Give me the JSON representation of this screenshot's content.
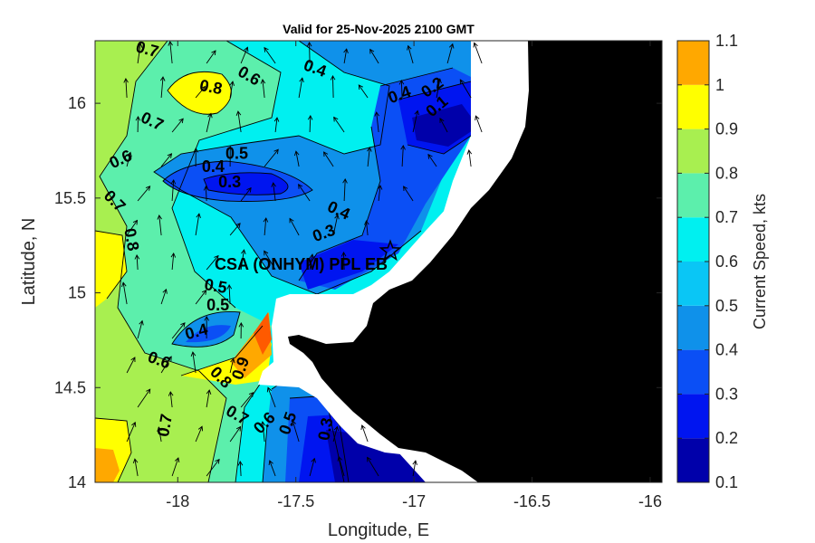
{
  "chart_data": {
    "type": "contourf",
    "title": "Valid for 25-Nov-2025 2100 GMT",
    "xlabel": "Longitude, E",
    "ylabel": "Latitude, N",
    "xlim": [
      -18.35,
      -15.95
    ],
    "ylim": [
      14.0,
      16.33
    ],
    "xticks": [
      -18,
      -17.5,
      -17,
      -16.5,
      -16
    ],
    "xtick_labels": [
      "-18",
      "-17.5",
      "-17",
      "-16.5",
      "-16"
    ],
    "yticks": [
      14,
      14.5,
      15,
      15.5,
      16
    ],
    "ytick_labels": [
      "14",
      "14.5",
      "15",
      "15.5",
      "16"
    ],
    "colorbar": {
      "label": "Current Speed, kts",
      "ticks": [
        0.1,
        0.2,
        0.3,
        0.4,
        0.5,
        0.6,
        0.7,
        0.8,
        0.9,
        1.0,
        1.1
      ],
      "tick_labels": [
        "0.1",
        "0.2",
        "0.3",
        "0.4",
        "0.5",
        "0.6",
        "0.7",
        "0.8",
        "0.9",
        "1",
        "1.1"
      ],
      "colors": [
        "#0000aa",
        "#0015f0",
        "#0b4ff5",
        "#0f91ea",
        "#0ac6f5",
        "#00f0f0",
        "#5cefac",
        "#a8ef50",
        "#ffff00",
        "#ffa800",
        "#ff5a00"
      ]
    },
    "site": {
      "label": "CSA (ONHYM) PPL EB",
      "lon": -17.1,
      "lat": 15.22
    },
    "contour_labels": [
      {
        "text": "0.7",
        "lon": -18.13,
        "lat": 16.28,
        "rot": 15
      },
      {
        "text": "0.6",
        "lon": -17.7,
        "lat": 16.14,
        "rot": 30
      },
      {
        "text": "0.4",
        "lon": -17.42,
        "lat": 16.18,
        "rot": 20
      },
      {
        "text": "0.8",
        "lon": -17.86,
        "lat": 16.08,
        "rot": 10
      },
      {
        "text": "0.4",
        "lon": -17.06,
        "lat": 16.04,
        "rot": -20
      },
      {
        "text": "0.2",
        "lon": -16.92,
        "lat": 16.08,
        "rot": -35
      },
      {
        "text": "0.1",
        "lon": -16.9,
        "lat": 15.98,
        "rot": -40
      },
      {
        "text": "0.7",
        "lon": -18.11,
        "lat": 15.9,
        "rot": 25
      },
      {
        "text": "0.6",
        "lon": -18.24,
        "lat": 15.7,
        "rot": -25
      },
      {
        "text": "0.5",
        "lon": -17.75,
        "lat": 15.73,
        "rot": 0
      },
      {
        "text": "0.4",
        "lon": -17.85,
        "lat": 15.66,
        "rot": 0
      },
      {
        "text": "0.3",
        "lon": -17.78,
        "lat": 15.58,
        "rot": 0
      },
      {
        "text": "0.4",
        "lon": -17.32,
        "lat": 15.43,
        "rot": 25
      },
      {
        "text": "0.3",
        "lon": -17.38,
        "lat": 15.31,
        "rot": -20
      },
      {
        "text": "0.7",
        "lon": -18.27,
        "lat": 15.48,
        "rot": 45
      },
      {
        "text": "0.8",
        "lon": -18.2,
        "lat": 15.28,
        "rot": 80
      },
      {
        "text": "0.5",
        "lon": -17.84,
        "lat": 15.03,
        "rot": 10
      },
      {
        "text": "0.5",
        "lon": -17.83,
        "lat": 14.93,
        "rot": 0
      },
      {
        "text": "0.4",
        "lon": -17.92,
        "lat": 14.79,
        "rot": -15
      },
      {
        "text": "0.6",
        "lon": -18.08,
        "lat": 14.64,
        "rot": 20
      },
      {
        "text": "0.9",
        "lon": -17.73,
        "lat": 14.6,
        "rot": -70
      },
      {
        "text": "0.8",
        "lon": -17.82,
        "lat": 14.55,
        "rot": 45
      },
      {
        "text": "0.7",
        "lon": -17.75,
        "lat": 14.35,
        "rot": 30
      },
      {
        "text": "0.7",
        "lon": -18.05,
        "lat": 14.3,
        "rot": -80
      },
      {
        "text": "0.6",
        "lon": -17.63,
        "lat": 14.31,
        "rot": -45
      },
      {
        "text": "0.5",
        "lon": -17.53,
        "lat": 14.31,
        "rot": -70
      },
      {
        "text": "0.3",
        "lon": -17.37,
        "lat": 14.28,
        "rot": -80
      }
    ]
  }
}
